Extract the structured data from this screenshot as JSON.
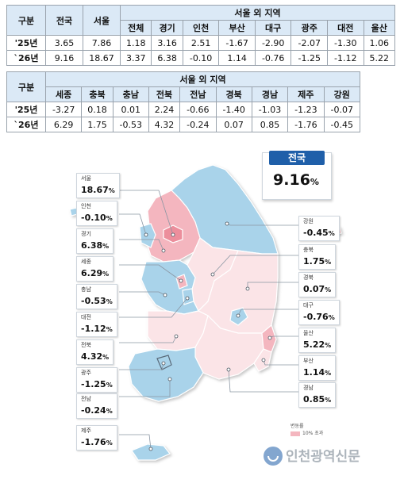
{
  "table1": {
    "rowhead": "구분",
    "col_nation": "전국",
    "col_seoul": "서울",
    "group": "서울 외 지역",
    "sub": [
      "전체",
      "경기",
      "인천",
      "부산",
      "대구",
      "광주",
      "대전",
      "울산"
    ],
    "rows": [
      {
        "label": "'25년",
        "nation": "3.65",
        "seoul": "7.86",
        "vals": [
          "1.18",
          "3.16",
          "2.51",
          "-1.67",
          "-2.90",
          "-2.07",
          "-1.30",
          "1.06"
        ]
      },
      {
        "label": "`26년",
        "nation": "9.16",
        "seoul": "18.67",
        "vals": [
          "3.37",
          "6.38",
          "-0.10",
          "1.14",
          "-0.76",
          "-1.25",
          "-1.12",
          "5.22"
        ]
      }
    ]
  },
  "table2": {
    "rowhead": "구분",
    "group": "서울 외 지역",
    "sub": [
      "세종",
      "충북",
      "충남",
      "전북",
      "전남",
      "경북",
      "경남",
      "제주",
      "강원"
    ],
    "rows": [
      {
        "label": "'25년",
        "vals": [
          "-3.27",
          "0.18",
          "0.01",
          "2.24",
          "-0.66",
          "-1.40",
          "-1.03",
          "-1.23",
          "-0.07"
        ]
      },
      {
        "label": "`26년",
        "vals": [
          "6.29",
          "1.75",
          "-0.53",
          "4.32",
          "-0.24",
          "0.07",
          "0.85",
          "-1.76",
          "-0.45"
        ]
      }
    ]
  },
  "national": {
    "label": "전국",
    "value": "9.16",
    "unit": "%"
  },
  "callouts_left": [
    {
      "name": "서울",
      "value": "18.67",
      "unit": "%"
    },
    {
      "name": "인천",
      "value": "-0.10",
      "unit": "%"
    },
    {
      "name": "경기",
      "value": "6.38",
      "unit": "%"
    },
    {
      "name": "세종",
      "value": "6.29",
      "unit": "%"
    },
    {
      "name": "충남",
      "value": "-0.53",
      "unit": "%"
    },
    {
      "name": "대전",
      "value": "-1.12",
      "unit": "%"
    },
    {
      "name": "전북",
      "value": "4.32",
      "unit": "%"
    },
    {
      "name": "광주",
      "value": "-1.25",
      "unit": "%"
    },
    {
      "name": "전남",
      "value": "-0.24",
      "unit": "%"
    },
    {
      "name": "제주",
      "value": "-1.76",
      "unit": "%"
    }
  ],
  "callouts_right": [
    {
      "name": "강원",
      "value": "-0.45",
      "unit": "%"
    },
    {
      "name": "충북",
      "value": "1.75",
      "unit": "%"
    },
    {
      "name": "경북",
      "value": "0.07",
      "unit": "%"
    },
    {
      "name": "대구",
      "value": "-0.76",
      "unit": "%"
    },
    {
      "name": "울산",
      "value": "5.22",
      "unit": "%"
    },
    {
      "name": "부산",
      "value": "1.14",
      "unit": "%"
    },
    {
      "name": "경남",
      "value": "0.85",
      "unit": "%"
    }
  ],
  "legend": {
    "title": "변동률",
    "item": "10% 초과"
  },
  "watermark": "인천광역신문",
  "colors": {
    "pos_high": "#f4b6bf",
    "pos_low": "#fbe4e7",
    "neg": "#a9d3ea",
    "header": "#dbe9f6",
    "national": "#1f5fa9"
  }
}
